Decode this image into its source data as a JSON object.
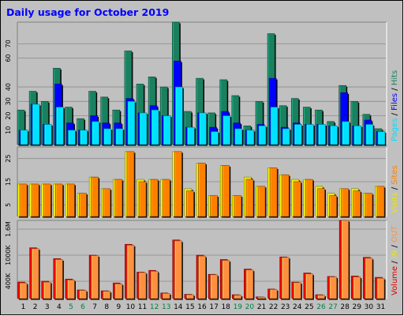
{
  "chart_data": {
    "title": "Daily usage for October 2019",
    "type": "bar",
    "x": [
      "1",
      "2",
      "3",
      "4",
      "5",
      "6",
      "7",
      "8",
      "9",
      "10",
      "11",
      "12",
      "13",
      "14",
      "15",
      "16",
      "17",
      "18",
      "19",
      "20",
      "21",
      "22",
      "23",
      "24",
      "25",
      "26",
      "27",
      "28",
      "29",
      "30",
      "31"
    ],
    "weekend_days": [
      "5",
      "6",
      "12",
      "13",
      "19",
      "20",
      "26",
      "27"
    ],
    "panels": [
      {
        "name": "top",
        "ylim": [
          0,
          85
        ],
        "ticks": [
          "10",
          "20",
          "30",
          "40",
          "60",
          "70"
        ],
        "tick_values": [
          10,
          20,
          30,
          40,
          60,
          70
        ],
        "legend": [
          {
            "label": "Pages",
            "color": "#00e0ff"
          },
          {
            "label": " / ",
            "color": "#000000"
          },
          {
            "label": "Files",
            "color": "#0000ff"
          },
          {
            "label": " / ",
            "color": "#000000"
          },
          {
            "label": "Hits",
            "color": "#1a8060"
          }
        ],
        "series": [
          {
            "name": "Hits",
            "color": "#1a8060",
            "values": [
              24,
              37,
              30,
              53,
              26,
              18,
              37,
              33,
              24,
              65,
              42,
              47,
              40,
              85,
              23,
              46,
              22,
              45,
              34,
              13,
              30,
              77,
              27,
              32,
              26,
              24,
              16,
              41,
              30,
              21,
              11
            ]
          },
          {
            "name": "Files",
            "color": "#0000ff",
            "values": [
              10,
              28,
              14,
              42,
              15,
              10,
              20,
              15,
              15,
              32,
              22,
              27,
              20,
              58,
              12,
              22,
              12,
              23,
              15,
              10,
              14,
              46,
              12,
              15,
              14,
              14,
              13,
              36,
              13,
              17,
              9
            ]
          },
          {
            "name": "Pages",
            "color": "#00e0ff",
            "values": [
              10,
              28,
              14,
              26,
              10,
              10,
              16,
              11,
              11,
              30,
              22,
              24,
              20,
              40,
              12,
              22,
              9,
              20,
              11,
              10,
              13,
              26,
              11,
              14,
              14,
              14,
              13,
              16,
              13,
              14,
              9
            ]
          }
        ]
      },
      {
        "name": "middle",
        "ylim": [
          0,
          30
        ],
        "ticks": [
          "5",
          "15",
          "25"
        ],
        "tick_values": [
          5,
          15,
          25
        ],
        "legend": [
          {
            "label": "Visits",
            "color": "#e8e800"
          },
          {
            "label": " / ",
            "color": "#000000"
          },
          {
            "label": "Sites",
            "color": "#ff8000"
          }
        ],
        "series": [
          {
            "name": "Visits",
            "color": "#e8e800",
            "values": [
              14,
              14,
              14,
              14,
              14,
              10,
              17,
              12,
              16,
              28,
              16,
              16,
              16,
              28,
              12,
              23,
              9,
              22,
              9,
              17,
              13,
              21,
              18,
              16,
              16,
              13,
              10,
              12,
              12,
              10,
              13
            ]
          },
          {
            "name": "Sites",
            "color": "#ff8000",
            "values": [
              14,
              14,
              14,
              14,
              14,
              10,
              17,
              12,
              16,
              28,
              15,
              16,
              16,
              28,
              11,
              23,
              9,
              22,
              9,
              16,
              13,
              21,
              18,
              15,
              16,
              12,
              9,
              12,
              11,
              10,
              13
            ]
          }
        ]
      },
      {
        "name": "bottom",
        "ylim": [
          0,
          1800000
        ],
        "ticks": [
          "400K",
          "1000K",
          "1.6M"
        ],
        "tick_values": [
          400000,
          1000000,
          1600000
        ],
        "legend": [
          {
            "label": "Volume",
            "color": "#e00000"
          },
          {
            "label": " / ",
            "color": "#000000"
          },
          {
            "label": "IN",
            "color": "#e8e800"
          },
          {
            "label": " / ",
            "color": "#000000"
          },
          {
            "label": "OUT",
            "color": "#ff9040"
          }
        ],
        "series": [
          {
            "name": "Volume",
            "color": "#e00000",
            "values": [
              380000,
              1170000,
              400000,
              920000,
              450000,
              200000,
              1000000,
              180000,
              360000,
              1250000,
              610000,
              650000,
              130000,
              1350000,
              100000,
              1000000,
              560000,
              900000,
              90000,
              680000,
              40000,
              220000,
              960000,
              380000,
              590000,
              90000,
              510000,
              1800000,
              520000,
              950000,
              490000
            ]
          },
          {
            "name": "OUT",
            "color": "#ff9040",
            "values": [
              360000,
              1150000,
              380000,
              900000,
              430000,
              190000,
              990000,
              170000,
              340000,
              1230000,
              600000,
              630000,
              120000,
              1330000,
              90000,
              980000,
              550000,
              880000,
              80000,
              660000,
              35000,
              210000,
              950000,
              370000,
              570000,
              80000,
              500000,
              1800000,
              500000,
              930000,
              470000
            ]
          }
        ]
      }
    ]
  }
}
